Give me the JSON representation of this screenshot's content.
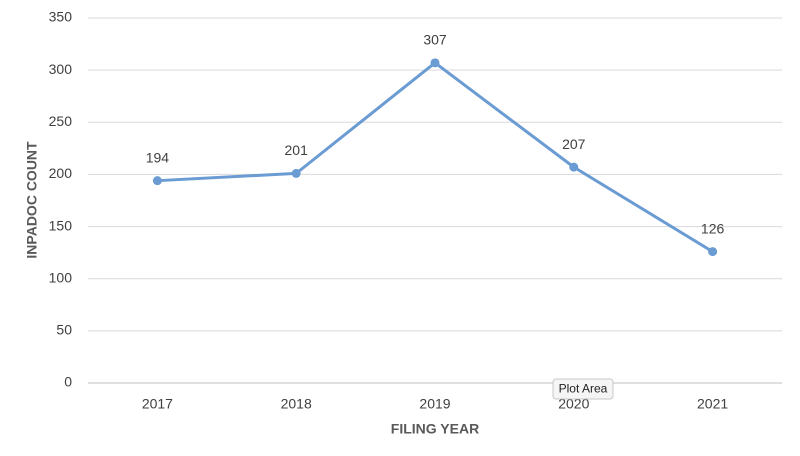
{
  "chart_data": {
    "type": "line",
    "x_label": "FILING YEAR",
    "y_label": "INPADOC COUNT",
    "categories": [
      "2017",
      "2018",
      "2019",
      "2020",
      "2021"
    ],
    "series": [
      {
        "name": "INPADOC COUNT",
        "color": "#6a9bd3",
        "values": [
          194,
          201,
          307,
          207,
          126
        ]
      }
    ],
    "ylim": [
      0,
      350
    ],
    "yticks": [
      0,
      50,
      100,
      150,
      200,
      250,
      300,
      350
    ],
    "grid": true,
    "tooltip": "Plot Area"
  }
}
